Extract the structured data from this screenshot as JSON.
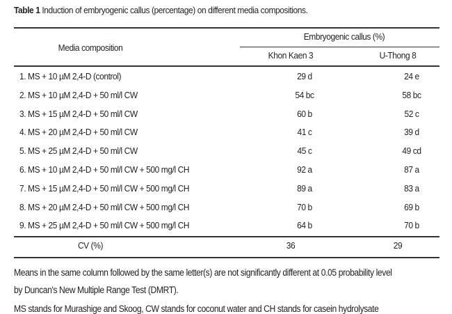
{
  "caption": {
    "label": "Table 1",
    "text": " Induction of embryogenic callus (percentage) on different media compositions."
  },
  "header": {
    "col1": "Media composition",
    "group": "Embryogenic callus (%)",
    "col2": "Khon Kaen 3",
    "col3": "U-Thong 8"
  },
  "rows": [
    {
      "media": "1. MS + 10 µM 2,4-D (control)",
      "kk3": "29 d",
      "ut8": "24 e"
    },
    {
      "media": "2. MS + 10 µM 2,4-D + 50 ml/l CW",
      "kk3": "54 bc",
      "ut8": "58 bc"
    },
    {
      "media": "3. MS + 15 µM 2,4-D + 50 ml/l CW",
      "kk3": "60 b",
      "ut8": "52 c"
    },
    {
      "media": "4. MS + 20 µM 2,4-D + 50 ml/l CW",
      "kk3": "41 c",
      "ut8": "39 d"
    },
    {
      "media": "5. MS + 25 µM 2,4-D + 50 ml/l CW",
      "kk3": "45 c",
      "ut8": "49 cd"
    },
    {
      "media": "6. MS + 10 µM 2,4-D + 50 ml/l CW + 500 mg/l CH",
      "kk3": "92 a",
      "ut8": "87 a"
    },
    {
      "media": "7. MS + 15 µM 2,4-D + 50 ml/l CW + 500 mg/l CH",
      "kk3": "89 a",
      "ut8": "83 a"
    },
    {
      "media": "8. MS + 20 µM 2,4-D + 50 ml/l CW + 500 mg/l CH",
      "kk3": "70 b",
      "ut8": "69 b"
    },
    {
      "media": "9. MS + 25 µM 2,4-D + 50 ml/l CW + 500 mg/l CH",
      "kk3": "64 b",
      "ut8": "70 b"
    }
  ],
  "cv": {
    "label": "CV (%)",
    "kk3": "36",
    "ut8": "29"
  },
  "notes": [
    "Means in the same column followed by the same letter(s) are not significantly different at 0.05 probability level",
    "by Duncan's New Multiple Range Test (DMRT).",
    "MS stands for Murashige and Skoog, CW stands for coconut water and CH stands for casein hydrolysate"
  ]
}
